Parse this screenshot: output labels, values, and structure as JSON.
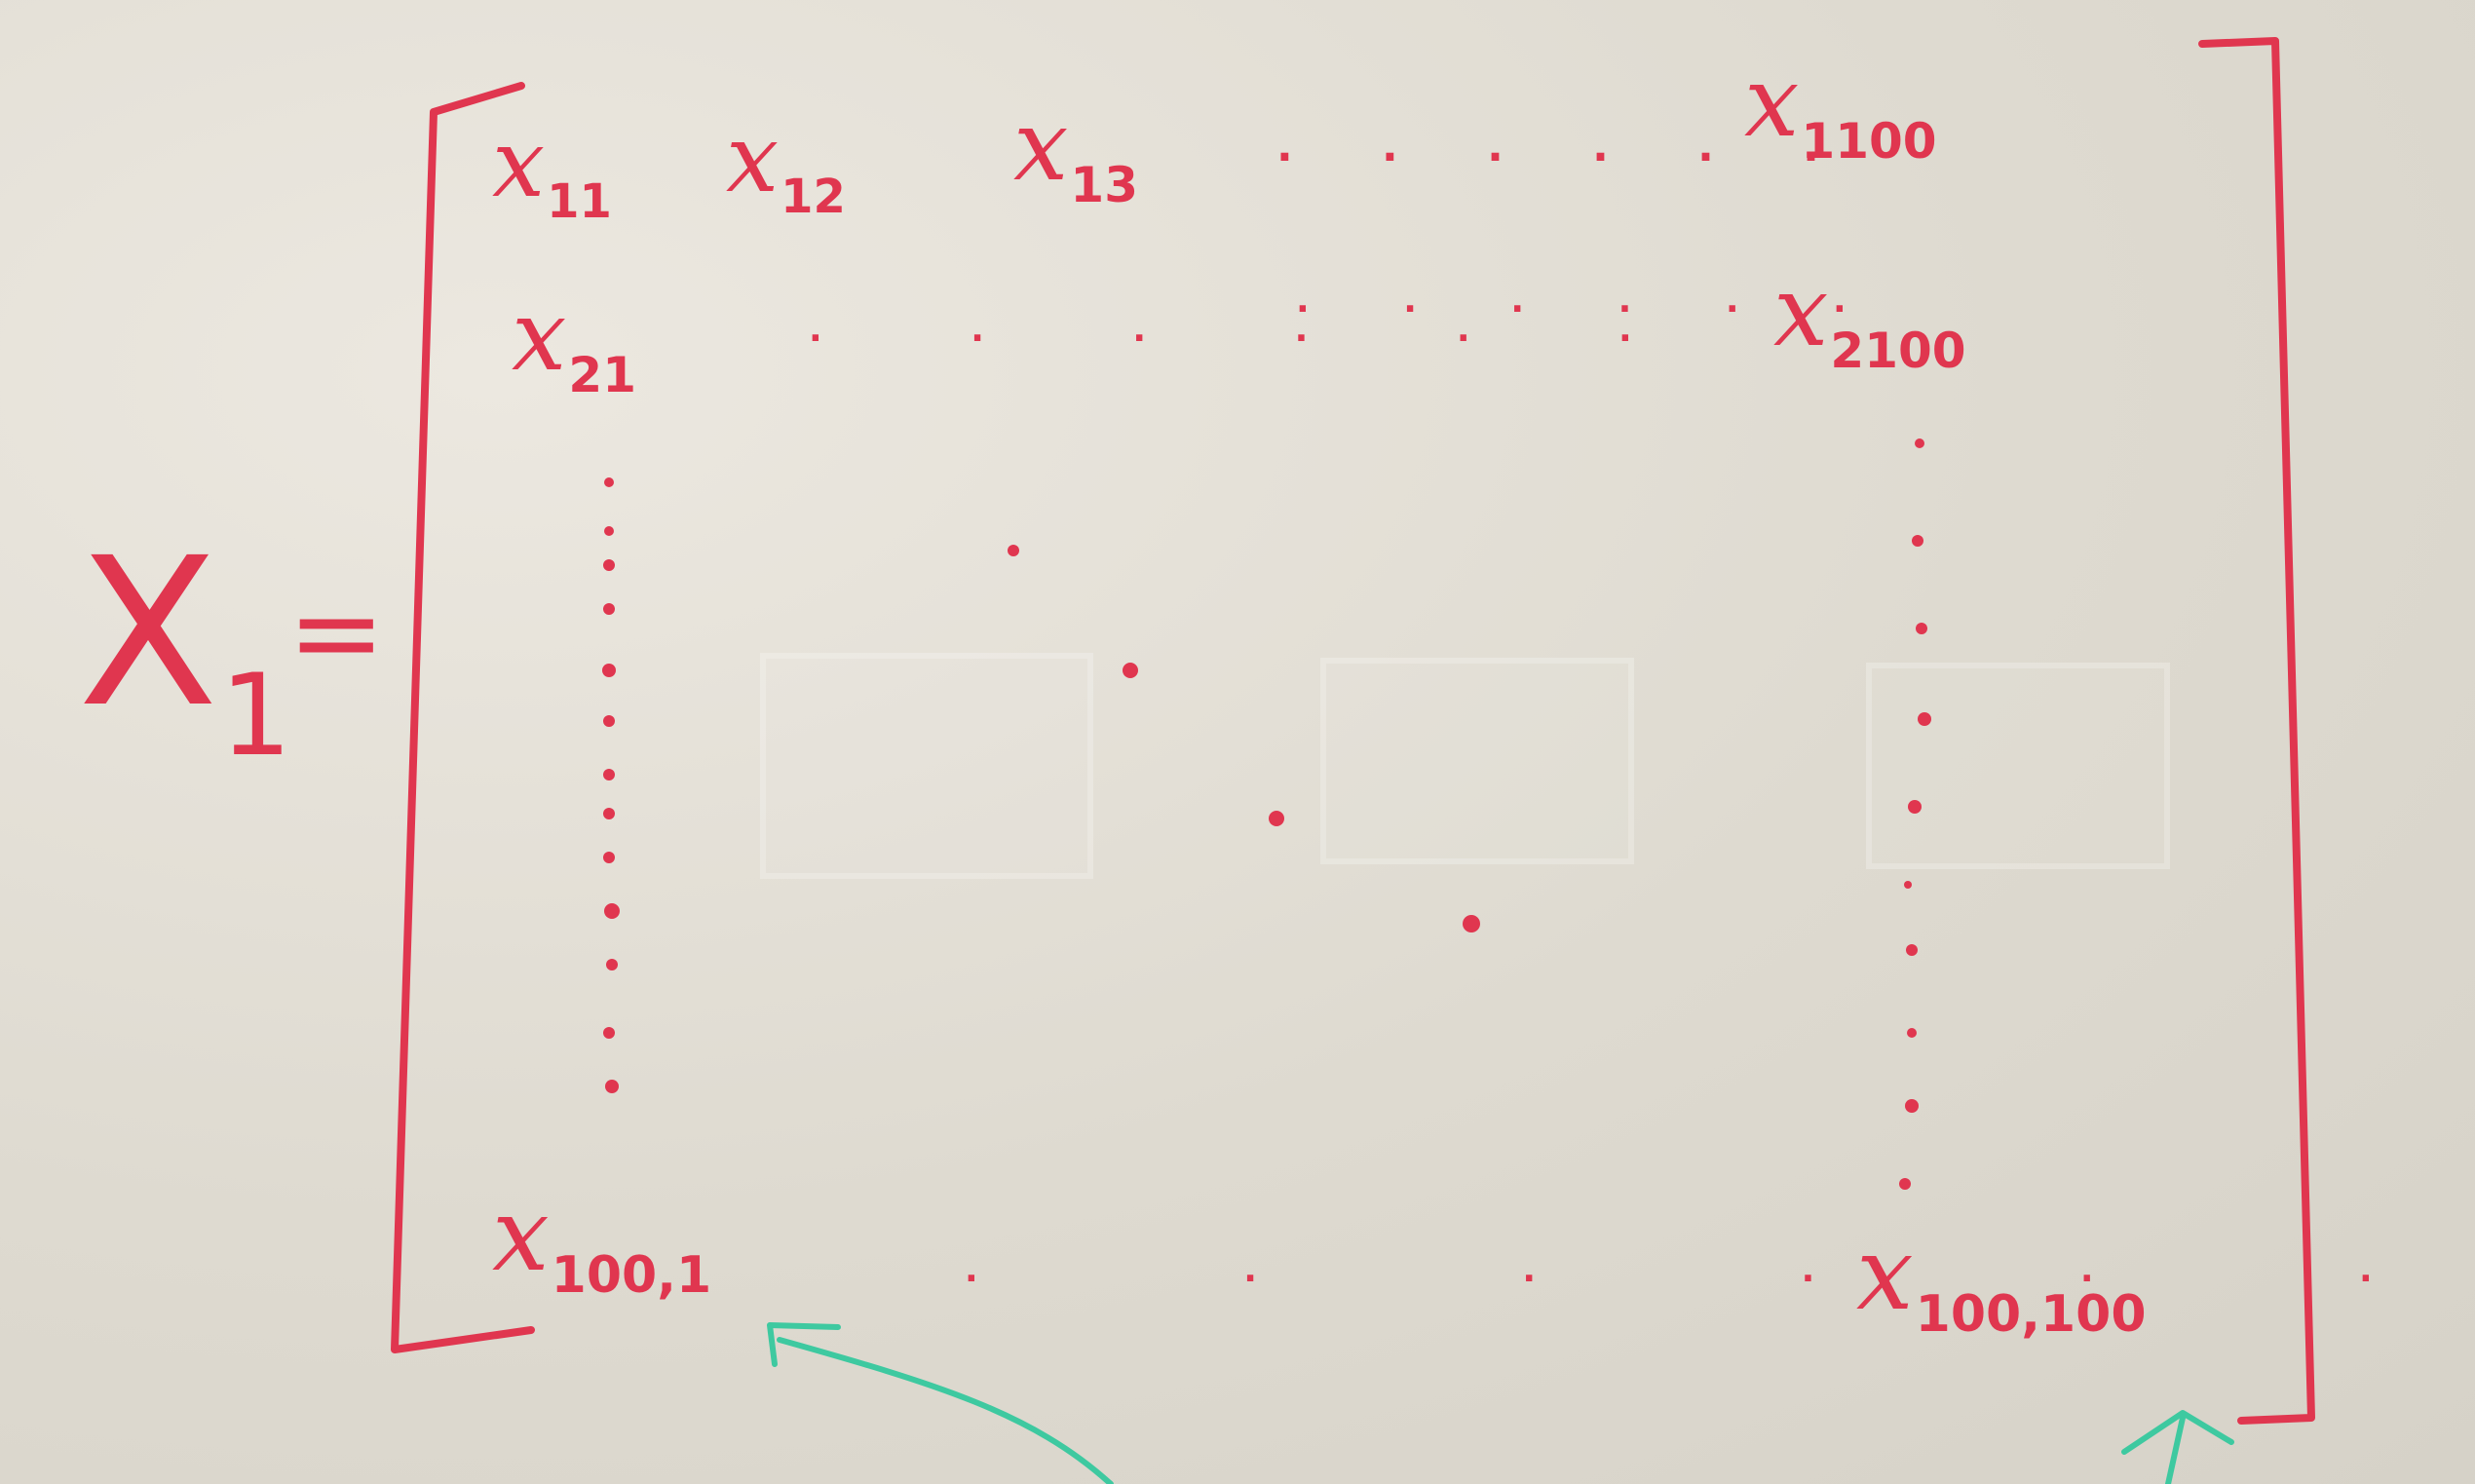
{
  "lhs": {
    "symbol": "X",
    "subscript": "1",
    "equals": "="
  },
  "matrix": {
    "row1": [
      {
        "base": "x",
        "sub": "11"
      },
      {
        "base": "x",
        "sub": "12"
      },
      {
        "base": "x",
        "sub": "13"
      }
    ],
    "row1_last": {
      "base": "x",
      "sub": "1100"
    },
    "row2_first": {
      "base": "x",
      "sub": "21"
    },
    "row2_last": {
      "base": "x",
      "sub": "2100"
    },
    "last_row_first": {
      "base": "x",
      "sub": "100,1"
    },
    "last_row_last": {
      "base": "x",
      "sub": "100,100"
    },
    "row_ellipsis": "· · · · · ·",
    "ink_color": "#e0364f",
    "arrow_color": "#3ec9a0"
  }
}
